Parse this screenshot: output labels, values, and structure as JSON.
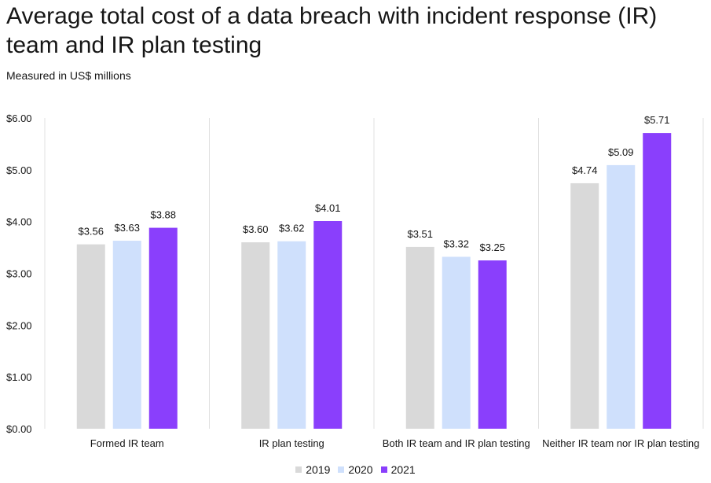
{
  "chart_data": {
    "type": "bar",
    "title": "Average total cost of a data breach with incident response (IR) team and IR plan testing",
    "subtitle": "Measured in US$ millions",
    "categories": [
      "Formed IR team",
      "IR plan testing",
      "Both IR team and IR plan testing",
      "Neither IR team nor IR plan testing"
    ],
    "series": [
      {
        "name": "2019",
        "color": "#d9d9d9",
        "values": [
          3.56,
          3.6,
          3.51,
          4.74
        ],
        "labels": [
          "$3.56",
          "$3.60",
          "$3.51",
          "$4.74"
        ]
      },
      {
        "name": "2020",
        "color": "#cfe0fc",
        "values": [
          3.63,
          3.62,
          3.32,
          5.09
        ],
        "labels": [
          "$3.63",
          "$3.62",
          "$3.32",
          "$5.09"
        ]
      },
      {
        "name": "2021",
        "color": "#8a3ffc",
        "values": [
          3.88,
          4.01,
          3.25,
          5.71
        ],
        "labels": [
          "$3.88",
          "$4.01",
          "$3.25",
          "$5.71"
        ]
      }
    ],
    "yticks": [
      {
        "value": 0,
        "label": "$0.00"
      },
      {
        "value": 1,
        "label": "$1.00"
      },
      {
        "value": 2,
        "label": "$2.00"
      },
      {
        "value": 3,
        "label": "$3.00"
      },
      {
        "value": 4,
        "label": "$4.00"
      },
      {
        "value": 5,
        "label": "$5.00"
      },
      {
        "value": 6,
        "label": "$6.00"
      }
    ],
    "ylim": [
      0,
      6
    ],
    "grid": false,
    "legend_position": "bottom-center",
    "divider_color": "#e0e0e0"
  }
}
